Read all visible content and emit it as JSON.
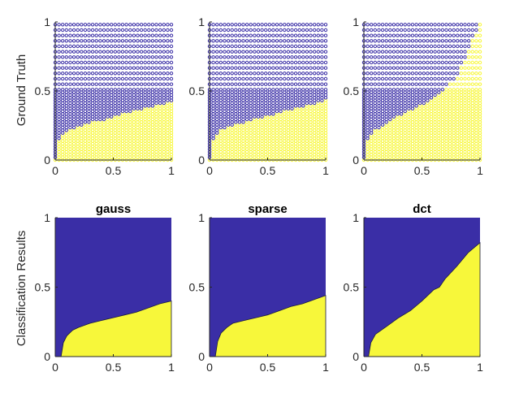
{
  "colors": {
    "blue": "#3a2ea6",
    "yellow": "#f7f73a",
    "axis": "#262626"
  },
  "chart_data": {
    "type": "scatter",
    "row_labels": [
      "Ground Truth",
      "Classification Results"
    ],
    "panel_titles": [
      "gauss",
      "sparse",
      "dct"
    ],
    "xlim": [
      0,
      1
    ],
    "ylim": [
      0,
      1
    ],
    "xticks": [
      "0",
      "0.5",
      "1"
    ],
    "yticks": [
      "0",
      "0.5",
      "1"
    ],
    "classes": [
      {
        "name": "",
        "color": "#3a2ea6",
        "marker": "circle"
      },
      {
        "name": "",
        "color": "#f7f73a",
        "marker": "circle"
      }
    ],
    "ground_truth_boundaries": [
      {
        "x": [
          0,
          0.02,
          0.05,
          0.1,
          0.2,
          0.3,
          0.4,
          0.5,
          0.6,
          0.7,
          0.8,
          0.9,
          1.0
        ],
        "y": [
          0.0,
          0.13,
          0.18,
          0.21,
          0.24,
          0.27,
          0.29,
          0.31,
          0.34,
          0.36,
          0.38,
          0.4,
          0.43
        ]
      },
      {
        "x": [
          0,
          0.02,
          0.05,
          0.1,
          0.2,
          0.3,
          0.4,
          0.5,
          0.6,
          0.7,
          0.8,
          0.9,
          1.0
        ],
        "y": [
          0.0,
          0.14,
          0.18,
          0.22,
          0.25,
          0.27,
          0.3,
          0.32,
          0.34,
          0.37,
          0.39,
          0.41,
          0.44
        ]
      },
      {
        "x": [
          0,
          0.02,
          0.05,
          0.1,
          0.2,
          0.3,
          0.4,
          0.5,
          0.6,
          0.7,
          0.8,
          0.85,
          0.9,
          0.95,
          1.0
        ],
        "y": [
          0.0,
          0.12,
          0.17,
          0.22,
          0.27,
          0.32,
          0.36,
          0.4,
          0.45,
          0.52,
          0.6,
          0.7,
          0.8,
          0.9,
          1.0
        ]
      }
    ],
    "classification_boundaries": [
      {
        "x": [
          0,
          0.05,
          0.07,
          0.1,
          0.15,
          0.2,
          0.3,
          0.4,
          0.5,
          0.6,
          0.7,
          0.8,
          0.9,
          1.0
        ],
        "y": [
          0.0,
          0.0,
          0.1,
          0.15,
          0.19,
          0.21,
          0.24,
          0.26,
          0.28,
          0.3,
          0.32,
          0.35,
          0.38,
          0.4
        ]
      },
      {
        "x": [
          0,
          0.05,
          0.07,
          0.1,
          0.15,
          0.2,
          0.3,
          0.4,
          0.5,
          0.6,
          0.7,
          0.8,
          0.9,
          1.0
        ],
        "y": [
          0.0,
          0.0,
          0.11,
          0.17,
          0.21,
          0.24,
          0.26,
          0.28,
          0.3,
          0.33,
          0.36,
          0.38,
          0.41,
          0.44
        ]
      },
      {
        "x": [
          0,
          0.04,
          0.06,
          0.1,
          0.2,
          0.3,
          0.4,
          0.5,
          0.6,
          0.65,
          0.7,
          0.8,
          0.9,
          1.0
        ],
        "y": [
          0.0,
          0.0,
          0.1,
          0.16,
          0.22,
          0.28,
          0.33,
          0.4,
          0.48,
          0.5,
          0.56,
          0.65,
          0.75,
          0.82
        ]
      }
    ]
  }
}
